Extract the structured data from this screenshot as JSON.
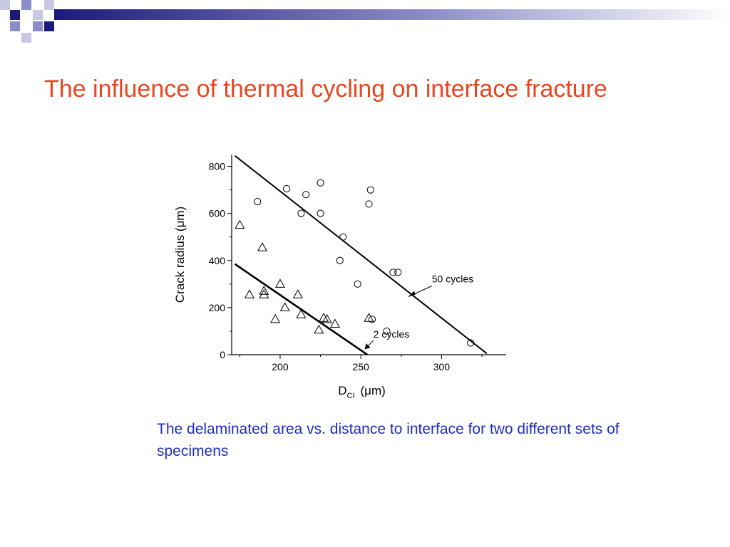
{
  "slide": {
    "title": "The influence of thermal cycling on interface fracture",
    "caption": "The delaminated area vs. distance to interface for two different sets of specimens",
    "colors": {
      "title": "#E8461E",
      "caption": "#1E2DBE",
      "decor_dark": "#1B1B7A",
      "decor_mid": "#8C8CC8",
      "decor_light": "#C8C8E4"
    }
  },
  "chart_data": {
    "type": "scatter",
    "title": "",
    "xlabel": "D",
    "xlabel_sub": "CI",
    "xlabel_unit": "(μm)",
    "ylabel": "Crack radius (μm)",
    "xlim": [
      170,
      340
    ],
    "ylim": [
      0,
      850
    ],
    "xticks": [
      200,
      250,
      300
    ],
    "yticks": [
      0,
      200,
      400,
      600,
      800
    ],
    "grid": false,
    "series": [
      {
        "name": "50 cycles",
        "marker": "circle",
        "points": [
          [
            186,
            650
          ],
          [
            204,
            705
          ],
          [
            216,
            680
          ],
          [
            225,
            730
          ],
          [
            213,
            600
          ],
          [
            225,
            600
          ],
          [
            256,
            700
          ],
          [
            255,
            640
          ],
          [
            239,
            500
          ],
          [
            237,
            400
          ],
          [
            270,
            350
          ],
          [
            273,
            350
          ],
          [
            248,
            300
          ],
          [
            257,
            150
          ],
          [
            266,
            100
          ],
          [
            318,
            50
          ]
        ],
        "fit_line": [
          [
            172,
            845
          ],
          [
            328,
            5
          ]
        ]
      },
      {
        "name": "2 cycles",
        "marker": "triangle",
        "points": [
          [
            175,
            550
          ],
          [
            189,
            455
          ],
          [
            181,
            255
          ],
          [
            190,
            270
          ],
          [
            190,
            255
          ],
          [
            200,
            300
          ],
          [
            203,
            200
          ],
          [
            197,
            150
          ],
          [
            211,
            255
          ],
          [
            213,
            170
          ],
          [
            227,
            155
          ],
          [
            229,
            150
          ],
          [
            234,
            130
          ],
          [
            224,
            105
          ],
          [
            255,
            155
          ]
        ],
        "fit_line": [
          [
            172,
            385
          ],
          [
            254,
            0
          ]
        ]
      }
    ],
    "annotations": [
      {
        "text": "50 cycles",
        "series": "50 cycles"
      },
      {
        "text": "2 cycles",
        "series": "2 cycles"
      }
    ]
  }
}
